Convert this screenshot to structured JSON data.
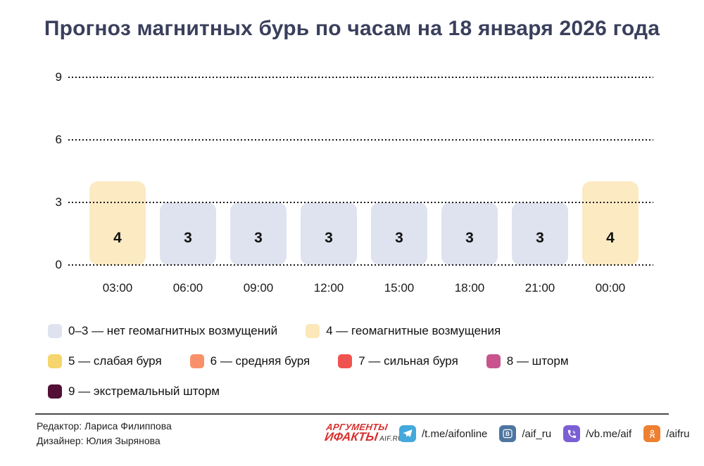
{
  "title": "Прогноз магнитных бурь по часам на 18 января 2026 года",
  "chart_data": {
    "type": "bar",
    "title": "Прогноз магнитных бурь по часам на 18 января 2026 года",
    "categories": [
      "03:00",
      "06:00",
      "09:00",
      "12:00",
      "15:00",
      "18:00",
      "21:00",
      "00:00"
    ],
    "values": [
      4,
      3,
      3,
      3,
      3,
      3,
      3,
      4
    ],
    "xlabel": "",
    "ylabel": "",
    "ylim": [
      0,
      9
    ],
    "yticks": [
      0,
      3,
      6,
      9
    ],
    "grid": "dotted horizontal",
    "legend_position": "bottom",
    "colors": {
      "level_low": "#DFE2EF",
      "level_4": "#FCEAC3"
    }
  },
  "legend": {
    "rows": [
      [
        {
          "color": "#DFE2EF",
          "label": "0–3 — нет геомагнитных возмущений"
        },
        {
          "color": "#FBE7B8",
          "label": "4 — геомагнитные возмущения"
        }
      ],
      [
        {
          "color": "#F6D56C",
          "label": "5 — слабая буря"
        },
        {
          "color": "#F8916A",
          "label": "6 — средняя буря"
        },
        {
          "color": "#F0534F",
          "label": "7 — сильная буря"
        },
        {
          "color": "#C8538E",
          "label": "8 — шторм"
        }
      ],
      [
        {
          "color": "#530F35",
          "label": "9 — экстремальный шторм"
        }
      ]
    ]
  },
  "footer": {
    "credits": {
      "editor": "Редактор: Лариса Филиппова",
      "designer": "Дизайнер: Юлия Зырянова"
    },
    "logo": {
      "line1": "АРГУМЕНТЫ",
      "line2": "ИФАКТЫ",
      "suffix": "AIF.RU"
    },
    "social": [
      {
        "icon": "telegram-icon",
        "label": "/t.me/aifonline",
        "color": "#42A9DC"
      },
      {
        "icon": "vk-icon",
        "label": "/aif_ru",
        "color": "#4D76A1"
      },
      {
        "icon": "viber-icon",
        "label": "/vb.me/aif",
        "color": "#7B5FD5"
      },
      {
        "icon": "ok-icon",
        "label": "/aifru",
        "color": "#EE8031"
      }
    ]
  }
}
